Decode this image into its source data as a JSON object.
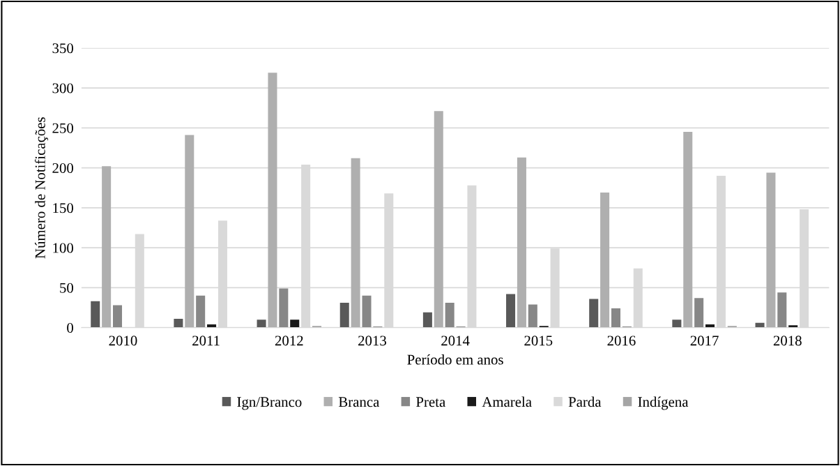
{
  "chart_data": {
    "type": "bar",
    "xlabel": "Período em anos",
    "ylabel": "Número de Notificações",
    "categories": [
      "2010",
      "2011",
      "2012",
      "2013",
      "2014",
      "2015",
      "2016",
      "2017",
      "2018"
    ],
    "series": [
      {
        "name": "Ign/Branco",
        "color": "#595959",
        "values": [
          33,
          11,
          10,
          31,
          19,
          42,
          36,
          10,
          6
        ]
      },
      {
        "name": "Branca",
        "color": "#afafaf",
        "values": [
          202,
          241,
          319,
          212,
          271,
          213,
          169,
          245,
          194
        ]
      },
      {
        "name": "Preta",
        "color": "#878787",
        "values": [
          28,
          40,
          49,
          40,
          31,
          29,
          24,
          37,
          44
        ]
      },
      {
        "name": "Amarela",
        "color": "#1a1a1a",
        "values": [
          0,
          4,
          10,
          1,
          1,
          2,
          1,
          4,
          3
        ]
      },
      {
        "name": "Parda",
        "color": "#d9d9d9",
        "values": [
          117,
          134,
          204,
          168,
          178,
          99,
          74,
          190,
          148
        ]
      },
      {
        "name": "Indígena",
        "color": "#a5a5a5",
        "values": [
          0,
          null,
          2,
          0,
          null,
          0,
          null,
          2,
          null
        ]
      }
    ],
    "ylim": [
      0,
      350
    ],
    "yticks": [
      0,
      50,
      100,
      150,
      200,
      250,
      300,
      350
    ],
    "grid": "y",
    "legend": "bottom"
  }
}
